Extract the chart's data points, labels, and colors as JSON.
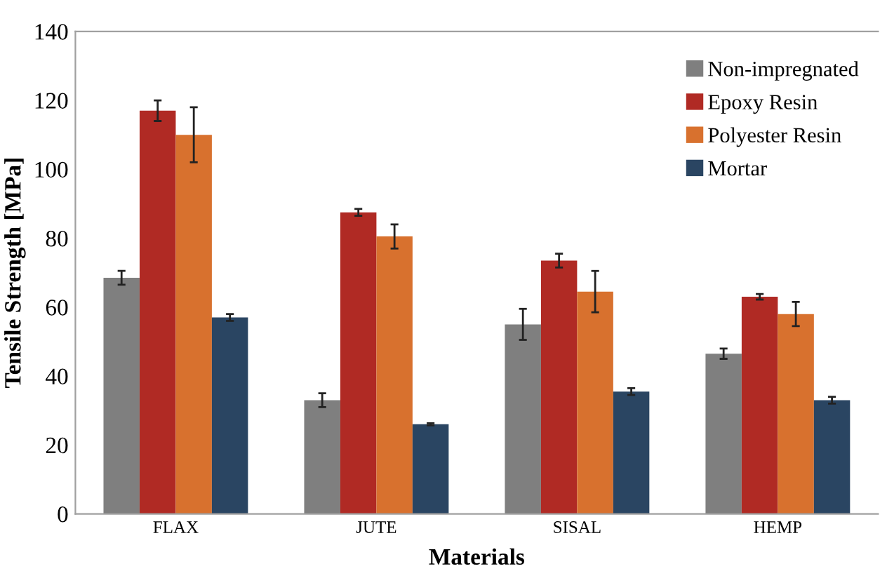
{
  "chart_data": {
    "type": "bar",
    "xlabel": "Materials",
    "ylabel": "Tensile Strength [MPa]",
    "categories": [
      "FLAX",
      "JUTE",
      "SISAL",
      "HEMP"
    ],
    "series": [
      {
        "name": "Non-impregnated",
        "color": "#7f7f7f",
        "values": [
          68.5,
          33,
          55,
          46.5
        ],
        "errors": [
          2,
          2,
          4.5,
          1.5
        ]
      },
      {
        "name": "Epoxy Resin",
        "color": "#b02a24",
        "values": [
          117,
          87.5,
          73.5,
          63
        ],
        "errors": [
          3,
          1,
          2,
          0.8
        ]
      },
      {
        "name": "Polyester Resin",
        "color": "#d8712e",
        "values": [
          110,
          80.5,
          64.5,
          58
        ],
        "errors": [
          8,
          3.5,
          6,
          3.5
        ]
      },
      {
        "name": "Mortar",
        "color": "#2a4562",
        "values": [
          57,
          26,
          35.5,
          33
        ],
        "errors": [
          1,
          0.3,
          1,
          1
        ]
      }
    ],
    "ylim": [
      0,
      140
    ],
    "yticks": [
      0,
      20,
      40,
      60,
      80,
      100,
      120,
      140
    ],
    "legend": "top right",
    "grid": false
  }
}
